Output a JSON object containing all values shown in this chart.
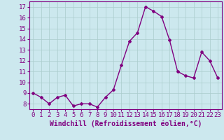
{
  "x": [
    0,
    1,
    2,
    3,
    4,
    5,
    6,
    7,
    8,
    9,
    10,
    11,
    12,
    13,
    14,
    15,
    16,
    17,
    18,
    19,
    20,
    21,
    22,
    23
  ],
  "y": [
    9.0,
    8.6,
    8.0,
    8.6,
    8.8,
    7.8,
    8.0,
    8.0,
    7.7,
    8.6,
    9.3,
    11.6,
    13.8,
    14.6,
    17.0,
    16.6,
    16.1,
    13.9,
    11.0,
    10.6,
    10.4,
    12.8,
    12.0,
    10.4
  ],
  "line_color": "#800080",
  "marker": "D",
  "marker_size": 2,
  "bg_color": "#cce8ee",
  "grid_color": "#aacccc",
  "xlabel": "Windchill (Refroidissement éolien,°C)",
  "xlabel_color": "#800080",
  "tick_color": "#800080",
  "ylim": [
    7.5,
    17.5
  ],
  "xlim": [
    -0.5,
    23.5
  ],
  "yticks": [
    8,
    9,
    10,
    11,
    12,
    13,
    14,
    15,
    16,
    17
  ],
  "xticks": [
    0,
    1,
    2,
    3,
    4,
    5,
    6,
    7,
    8,
    9,
    10,
    11,
    12,
    13,
    14,
    15,
    16,
    17,
    18,
    19,
    20,
    21,
    22,
    23
  ],
  "line_width": 1.0,
  "tick_fontsize": 6.5,
  "xlabel_fontsize": 7.0
}
